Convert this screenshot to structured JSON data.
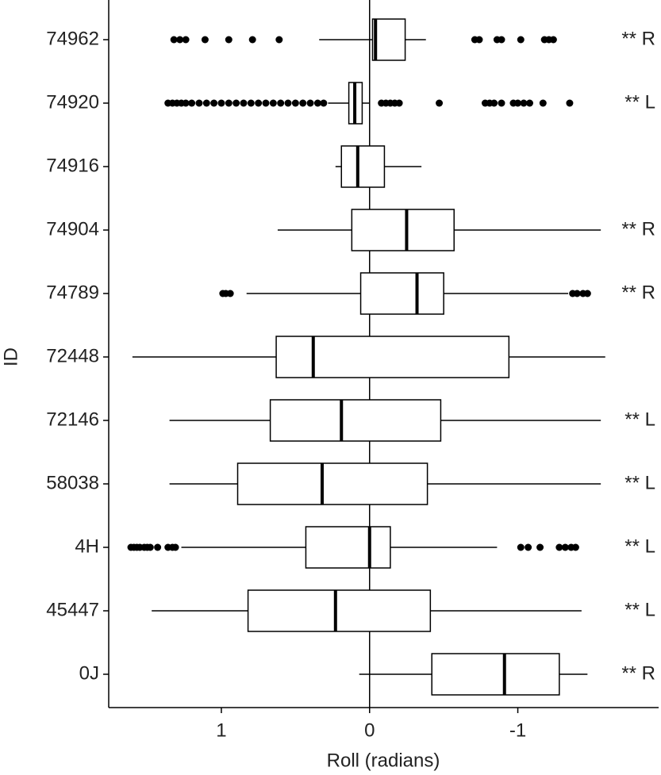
{
  "chart_data": {
    "type": "boxplot",
    "orientation": "horizontal",
    "x_label": "Roll (radians)",
    "y_label": "ID",
    "categories": [
      "74962",
      "74920",
      "74916",
      "74904",
      "74789",
      "72448",
      "72146",
      "58038",
      "4H",
      "45447",
      "0J"
    ],
    "xlim": [
      1.76,
      -1.95
    ],
    "xticks": [
      1,
      0,
      -1
    ],
    "vline": 0,
    "boxes": [
      {
        "whisker_low": -0.38,
        "q1": -0.24,
        "median": -0.04,
        "q3": -0.02,
        "whisker_high": 0.34,
        "outliers": [
          1.32,
          1.28,
          1.24,
          1.11,
          0.95,
          0.79,
          0.61,
          -0.71,
          -0.74,
          -0.86,
          -0.89,
          -1.02,
          -1.18,
          -1.21,
          -1.24
        ]
      },
      {
        "whisker_low": 0.0,
        "q1": 0.05,
        "median": 0.1,
        "q3": 0.14,
        "whisker_high": 0.28,
        "outliers": [
          1.36,
          1.33,
          1.3,
          1.27,
          1.24,
          1.2,
          1.15,
          1.1,
          1.05,
          1.0,
          0.95,
          0.9,
          0.85,
          0.8,
          0.75,
          0.7,
          0.65,
          0.6,
          0.55,
          0.5,
          0.45,
          0.4,
          0.35,
          0.31,
          -0.08,
          -0.11,
          -0.14,
          -0.17,
          -0.2,
          -0.47,
          -0.78,
          -0.81,
          -0.84,
          -0.89,
          -0.97,
          -1.0,
          -1.04,
          -1.08,
          -1.17,
          -1.35
        ]
      },
      {
        "whisker_low": -0.35,
        "q1": -0.1,
        "median": 0.08,
        "q3": 0.19,
        "whisker_high": 0.23,
        "outliers": []
      },
      {
        "whisker_low": -1.56,
        "q1": -0.57,
        "median": -0.25,
        "q3": 0.12,
        "whisker_high": 0.62,
        "outliers": []
      },
      {
        "whisker_low": -1.34,
        "q1": -0.5,
        "median": -0.32,
        "q3": 0.06,
        "whisker_high": 0.83,
        "outliers": [
          0.99,
          0.97,
          0.94,
          -1.37,
          -1.4,
          -1.44,
          -1.47
        ]
      },
      {
        "whisker_low": -1.59,
        "q1": -0.94,
        "median": 0.38,
        "q3": 0.63,
        "whisker_high": 1.6,
        "outliers": []
      },
      {
        "whisker_low": -1.56,
        "q1": -0.48,
        "median": 0.19,
        "q3": 0.67,
        "whisker_high": 1.35,
        "outliers": []
      },
      {
        "whisker_low": -1.56,
        "q1": -0.39,
        "median": 0.32,
        "q3": 0.89,
        "whisker_high": 1.35,
        "outliers": []
      },
      {
        "whisker_low": -0.86,
        "q1": -0.14,
        "median": 0.0,
        "q3": 0.43,
        "whisker_high": 1.27,
        "outliers": [
          1.61,
          1.59,
          1.57,
          1.55,
          1.52,
          1.5,
          1.48,
          1.43,
          1.36,
          1.33,
          1.31,
          -1.02,
          -1.07,
          -1.15,
          -1.28,
          -1.32,
          -1.36,
          -1.39
        ]
      },
      {
        "whisker_low": -1.43,
        "q1": -0.41,
        "median": 0.23,
        "q3": 0.82,
        "whisker_high": 1.47,
        "outliers": []
      },
      {
        "whisker_low": -1.47,
        "q1": -1.28,
        "median": -0.91,
        "q3": -0.42,
        "whisker_high": 0.07,
        "outliers": []
      }
    ],
    "annotations": [
      "** R",
      "** L",
      null,
      "** R",
      "** R",
      null,
      "** L",
      "** L",
      "** L",
      "** L",
      "** R"
    ],
    "color": "#000000"
  }
}
